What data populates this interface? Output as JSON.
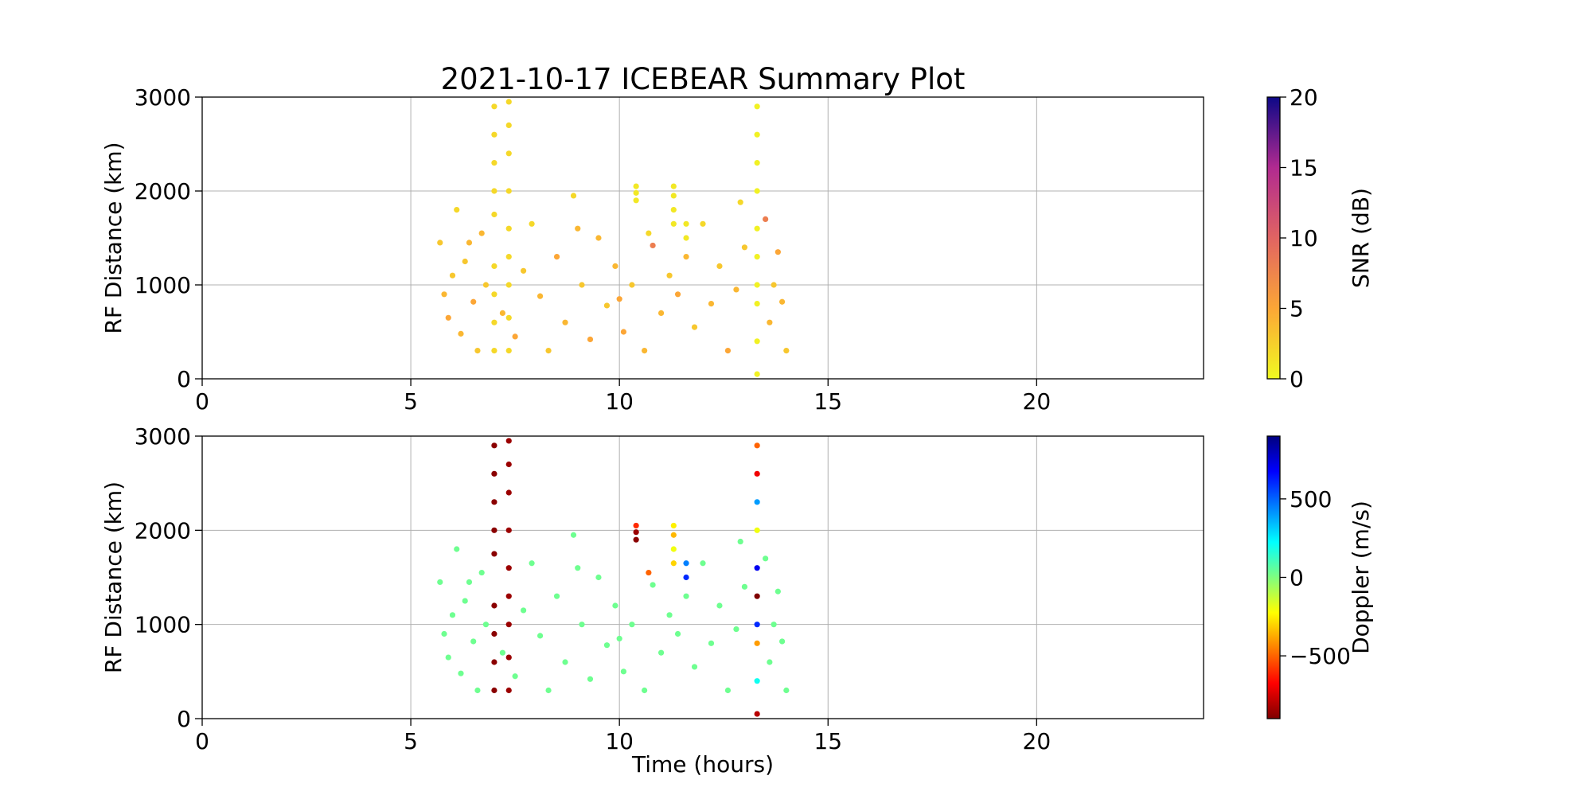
{
  "chart_data": [
    {
      "type": "scatter",
      "title": "2021-10-17 ICEBEAR Summary Plot",
      "ylabel": "RF Distance (km)",
      "xlim": [
        0,
        24
      ],
      "xticks": [
        0,
        5,
        10,
        15,
        20
      ],
      "ylim": [
        0,
        3000
      ],
      "yticks": [
        0,
        1000,
        2000,
        3000
      ],
      "grid": true,
      "colorbar": {
        "label": "SNR (dB)",
        "colormap": "plasma_r",
        "lim": [
          0,
          20
        ],
        "ticks": [
          0,
          5,
          10,
          15,
          20
        ]
      },
      "x": [
        5.7,
        5.8,
        5.9,
        6.0,
        6.1,
        6.2,
        6.3,
        6.5,
        6.6,
        6.7,
        6.8,
        7.2,
        7.5,
        7.7,
        7.9,
        8.1,
        8.3,
        8.5,
        8.7,
        8.9,
        9.1,
        9.3,
        9.5,
        9.7,
        9.9,
        10.1,
        10.3,
        10.6,
        10.8,
        11.0,
        11.2,
        11.4,
        11.6,
        11.8,
        12.0,
        12.2,
        12.4,
        12.6,
        12.8,
        13.0,
        13.5,
        13.6,
        13.7,
        13.8,
        13.9,
        14.0,
        9.0,
        10.0,
        12.9,
        6.4,
        7.0,
        7.0,
        7.0,
        7.0,
        7.0,
        7.0,
        7.0,
        7.0,
        7.0,
        7.35,
        7.35,
        7.35,
        7.35,
        7.35,
        7.35,
        7.35,
        7.35,
        7.35,
        13.3,
        13.3,
        13.3,
        13.3,
        13.3,
        13.3,
        13.3,
        13.3,
        13.3,
        13.3,
        10.4,
        10.4,
        10.4,
        11.3,
        11.3,
        11.3,
        11.3,
        11.6,
        11.6,
        10.7
      ],
      "y": [
        1450,
        900,
        650,
        1100,
        1800,
        480,
        1250,
        820,
        300,
        1550,
        1000,
        700,
        450,
        1150,
        1650,
        880,
        300,
        1300,
        600,
        1950,
        1000,
        420,
        1500,
        780,
        1200,
        500,
        1000,
        300,
        1420,
        700,
        1100,
        900,
        1300,
        550,
        1650,
        800,
        1200,
        300,
        950,
        1400,
        1700,
        600,
        1000,
        1350,
        820,
        300,
        1600,
        850,
        1880,
        1450,
        300,
        600,
        900,
        1200,
        1750,
        2000,
        2300,
        2600,
        2900,
        300,
        650,
        1000,
        1300,
        1600,
        2000,
        2400,
        2700,
        2950,
        50,
        400,
        800,
        1000,
        1300,
        1600,
        2000,
        2300,
        2600,
        2900,
        1900,
        1980,
        2050,
        1650,
        1800,
        1950,
        2050,
        1500,
        1650,
        1550
      ],
      "c": [
        3,
        4,
        5,
        3,
        2,
        4,
        3,
        5,
        3,
        4,
        3,
        4,
        5,
        3,
        2,
        4,
        3,
        5,
        4,
        2,
        3,
        5,
        4,
        3,
        4,
        5,
        3,
        4,
        8,
        4,
        3,
        5,
        4,
        3,
        2,
        4,
        3,
        5,
        4,
        3,
        8,
        4,
        3,
        5,
        4,
        3,
        4,
        5,
        2,
        4,
        2,
        2,
        2,
        2,
        2,
        2,
        2,
        2,
        2,
        2,
        2,
        2,
        2,
        2,
        2,
        2,
        2,
        2,
        0.5,
        0.5,
        0.5,
        0.5,
        0.5,
        0.5,
        0.5,
        0.5,
        0.5,
        0.5,
        1,
        1,
        1,
        1,
        1,
        1,
        1,
        1,
        1,
        2
      ]
    },
    {
      "type": "scatter",
      "ylabel": "RF Distance (km)",
      "xlabel": "Time (hours)",
      "xlim": [
        0,
        24
      ],
      "xticks": [
        0,
        5,
        10,
        15,
        20
      ],
      "ylim": [
        0,
        3000
      ],
      "yticks": [
        0,
        1000,
        2000,
        3000
      ],
      "grid": true,
      "colorbar": {
        "label": "Doppler (m/s)",
        "colormap": "jet_r",
        "lim": [
          -900,
          900
        ],
        "ticks": [
          {
            "value": -500,
            "label": "−500"
          },
          0,
          500
        ]
      },
      "x": [
        5.7,
        5.8,
        5.9,
        6.0,
        6.1,
        6.2,
        6.3,
        6.5,
        6.6,
        6.7,
        6.8,
        7.2,
        7.5,
        7.7,
        7.9,
        8.1,
        8.3,
        8.5,
        8.7,
        8.9,
        9.1,
        9.3,
        9.5,
        9.7,
        9.9,
        10.1,
        10.3,
        10.6,
        10.8,
        11.0,
        11.2,
        11.4,
        11.6,
        11.8,
        12.0,
        12.2,
        12.4,
        12.6,
        12.8,
        13.0,
        13.5,
        13.6,
        13.7,
        13.8,
        13.9,
        14.0,
        9.0,
        10.0,
        12.9,
        6.4,
        7.0,
        7.0,
        7.0,
        7.0,
        7.0,
        7.0,
        7.0,
        7.0,
        7.0,
        7.35,
        7.35,
        7.35,
        7.35,
        7.35,
        7.35,
        7.35,
        7.35,
        7.35,
        13.3,
        13.3,
        13.3,
        13.3,
        13.3,
        13.3,
        13.3,
        13.3,
        13.3,
        13.3,
        10.4,
        10.4,
        10.4,
        11.3,
        11.3,
        11.3,
        11.3,
        11.6,
        11.6,
        10.7
      ],
      "y": [
        1450,
        900,
        650,
        1100,
        1800,
        480,
        1250,
        820,
        300,
        1550,
        1000,
        700,
        450,
        1150,
        1650,
        880,
        300,
        1300,
        600,
        1950,
        1000,
        420,
        1500,
        780,
        1200,
        500,
        1000,
        300,
        1420,
        700,
        1100,
        900,
        1300,
        550,
        1650,
        800,
        1200,
        300,
        950,
        1400,
        1700,
        600,
        1000,
        1350,
        820,
        300,
        1600,
        850,
        1880,
        1450,
        300,
        600,
        900,
        1200,
        1750,
        2000,
        2300,
        2600,
        2900,
        300,
        650,
        1000,
        1300,
        1600,
        2000,
        2400,
        2700,
        2950,
        50,
        400,
        800,
        1000,
        1300,
        1600,
        2000,
        2300,
        2600,
        2900,
        1900,
        1980,
        2050,
        1650,
        1800,
        1950,
        2050,
        1500,
        1650,
        1550
      ],
      "c": [
        30,
        30,
        30,
        30,
        30,
        30,
        30,
        30,
        30,
        30,
        30,
        30,
        30,
        30,
        30,
        30,
        30,
        30,
        30,
        30,
        30,
        30,
        30,
        30,
        30,
        30,
        30,
        30,
        30,
        30,
        30,
        30,
        30,
        30,
        30,
        30,
        30,
        30,
        30,
        30,
        30,
        30,
        30,
        30,
        30,
        30,
        30,
        30,
        30,
        30,
        -880,
        -880,
        -880,
        -880,
        -880,
        -880,
        -880,
        -880,
        -880,
        -850,
        -850,
        -850,
        -850,
        -850,
        -850,
        -850,
        -850,
        -850,
        -800,
        200,
        -400,
        600,
        -900,
        700,
        -200,
        400,
        -700,
        -500,
        -880,
        -850,
        -600,
        -300,
        -200,
        -350,
        -250,
        600,
        450,
        -500
      ]
    }
  ]
}
